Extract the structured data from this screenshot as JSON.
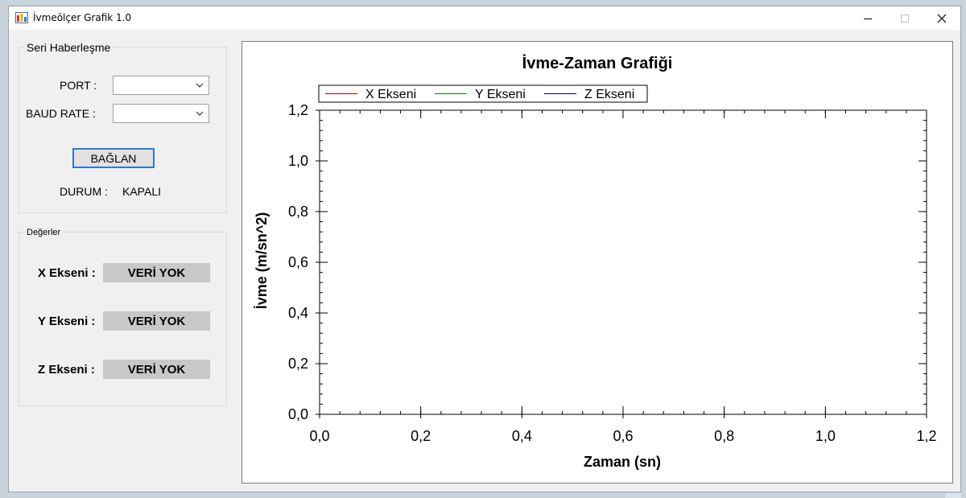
{
  "window": {
    "title": "İvmeölçer Grafik 1.0"
  },
  "serial": {
    "group_title": "Seri Haberleşme",
    "port_label": "PORT :",
    "port_value": "",
    "baud_label": "BAUD RATE :",
    "baud_value": "",
    "connect_label": "BAĞLAN",
    "status_label": "DURUM :",
    "status_value": "KAPALI"
  },
  "values": {
    "group_title": "Değerler",
    "rows": [
      {
        "label": "X Ekseni :",
        "value": "VERİ YOK"
      },
      {
        "label": "Y Ekseni :",
        "value": "VERİ YOK"
      },
      {
        "label": "Z Ekseni :",
        "value": "VERİ YOK"
      }
    ]
  },
  "chart_data": {
    "type": "line",
    "title": "İvme-Zaman Grafiği",
    "xlabel": "Zaman (sn)",
    "ylabel": "İvme (m/sn^2)",
    "xlim": [
      0,
      1.2
    ],
    "ylim": [
      0,
      1.2
    ],
    "x_ticks": [
      "0,0",
      "0,2",
      "0,4",
      "0,6",
      "0,8",
      "1,0",
      "1,2"
    ],
    "y_ticks": [
      "0,0",
      "0,2",
      "0,4",
      "0,6",
      "0,8",
      "1,0",
      "1,2"
    ],
    "series": [
      {
        "name": "X Ekseni",
        "color": "#c00000",
        "values": []
      },
      {
        "name": "Y Ekseni",
        "color": "#008000",
        "values": []
      },
      {
        "name": "Z Ekseni",
        "color": "#000080",
        "values": []
      }
    ],
    "legend": "top-left",
    "grid": false
  }
}
